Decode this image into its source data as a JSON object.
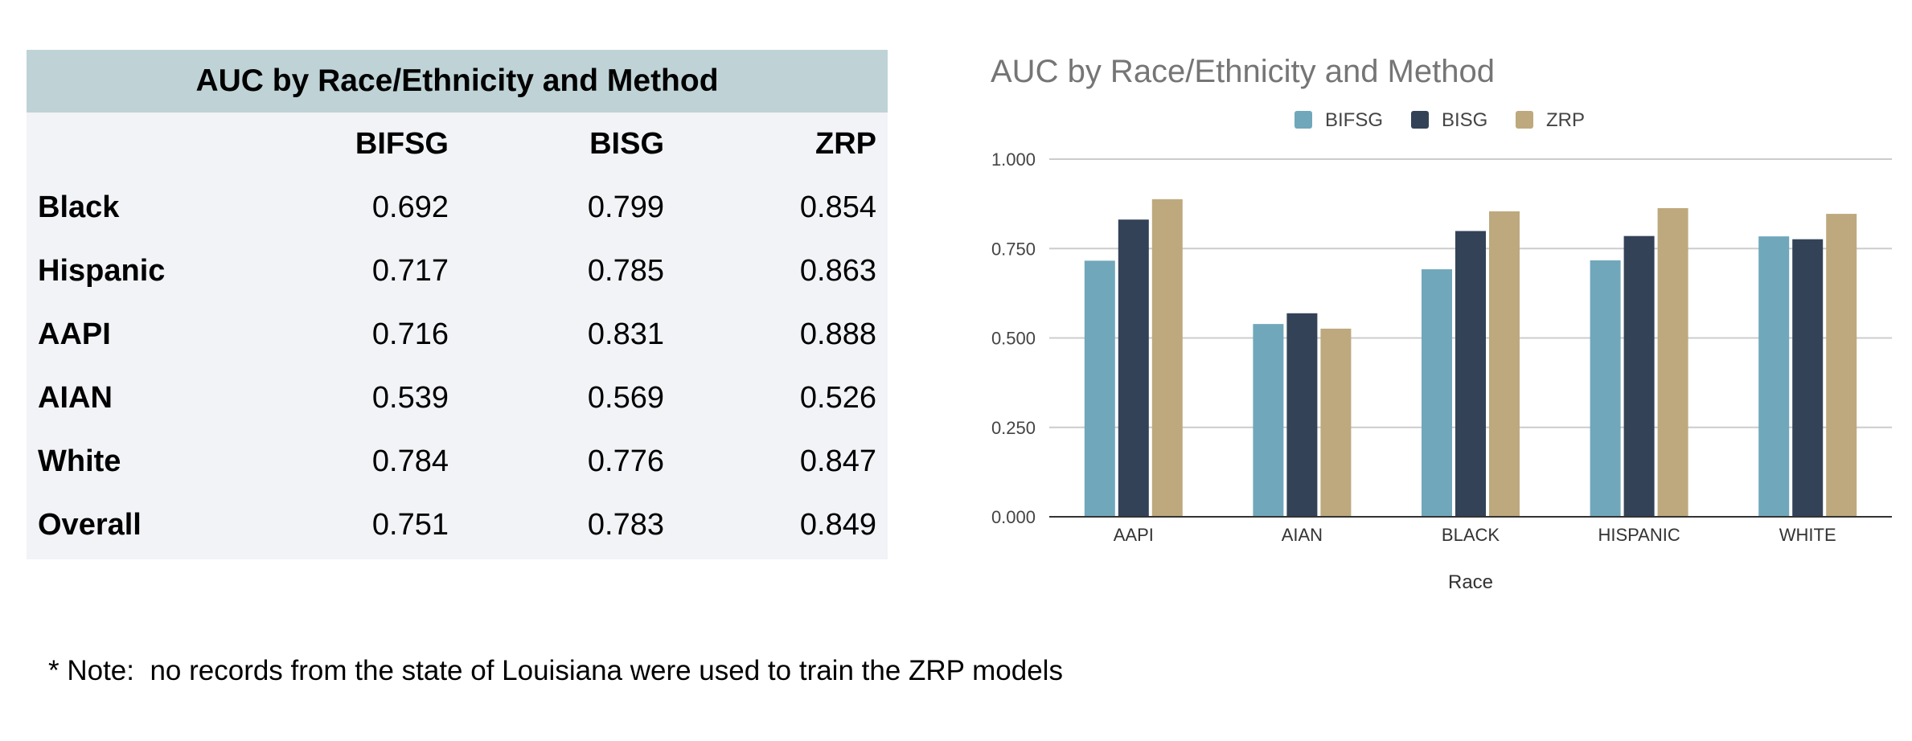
{
  "table": {
    "title": "AUC by Race/Ethnicity and Method",
    "headers": [
      "",
      "BIFSG",
      "BISG",
      "ZRP"
    ],
    "rows": [
      {
        "label": "Black",
        "values": [
          "0.692",
          "0.799",
          "0.854"
        ]
      },
      {
        "label": "Hispanic",
        "values": [
          "0.717",
          "0.785",
          "0.863"
        ]
      },
      {
        "label": "AAPI",
        "values": [
          "0.716",
          "0.831",
          "0.888"
        ]
      },
      {
        "label": "AIAN",
        "values": [
          "0.539",
          "0.569",
          "0.526"
        ]
      },
      {
        "label": "White",
        "values": [
          "0.784",
          "0.776",
          "0.847"
        ]
      },
      {
        "label": "Overall",
        "values": [
          "0.751",
          "0.783",
          "0.849"
        ]
      }
    ]
  },
  "chart_data": {
    "type": "bar",
    "title": "AUC by Race/Ethnicity and Method",
    "xlabel": "Race",
    "ylabel": "",
    "categories": [
      "AAPI",
      "AIAN",
      "BLACK",
      "HISPANIC",
      "WHITE"
    ],
    "series": [
      {
        "name": "BIFSG",
        "color": "#70a7bb",
        "values": [
          0.716,
          0.539,
          0.692,
          0.717,
          0.784
        ]
      },
      {
        "name": "BISG",
        "color": "#334257",
        "values": [
          0.831,
          0.569,
          0.799,
          0.785,
          0.776
        ]
      },
      {
        "name": "ZRP",
        "color": "#bea97e",
        "values": [
          0.888,
          0.526,
          0.854,
          0.863,
          0.847
        ]
      }
    ],
    "ylim": [
      0,
      1
    ],
    "yticks": [
      "0.000",
      "0.250",
      "0.500",
      "0.750",
      "1.000"
    ],
    "legend_position": "top",
    "grid": true
  },
  "note": "* Note:  no records from the state of Louisiana were used to train the ZRP models"
}
